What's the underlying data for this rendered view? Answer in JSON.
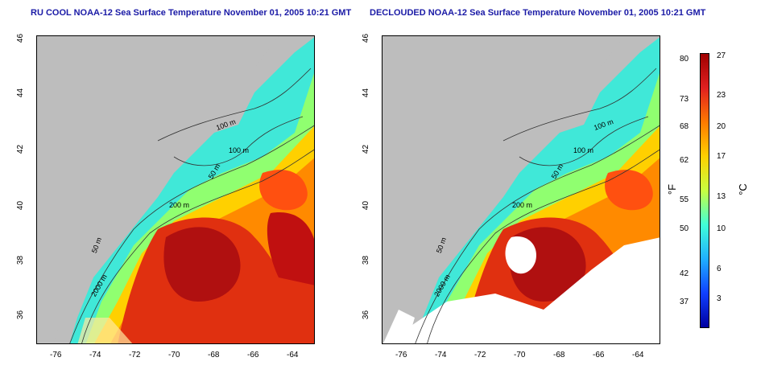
{
  "panels": [
    {
      "title": "RU COOL NOAA-12 Sea Surface Temperature November 01, 2005 10:21 GMT",
      "variant": "raw"
    },
    {
      "title": "DECLOUDED NOAA-12 Sea Surface Temperature November 01, 2005 10:21 GMT",
      "variant": "declouded"
    }
  ],
  "axes": {
    "lon_ticks": [
      "-76",
      "-74",
      "-72",
      "-70",
      "-68",
      "-66",
      "-64"
    ],
    "lat_ticks": [
      "46",
      "44",
      "42",
      "40",
      "38",
      "36"
    ]
  },
  "contours": {
    "labels": [
      "100 m",
      "100 m",
      "50 m",
      "200 m",
      "50 m",
      "2000 m"
    ]
  },
  "colorbar": {
    "fahrenheit": [
      "80",
      "73",
      "68",
      "62",
      "55",
      "50",
      "42",
      "37"
    ],
    "celsius": [
      "27",
      "23",
      "20",
      "17",
      "13",
      "10",
      "6",
      "3"
    ],
    "unit_f": "°F",
    "unit_c": "°C",
    "colors": [
      "#a00000",
      "#e02020",
      "#ff7a00",
      "#ffd000",
      "#c8ff40",
      "#40ffd8",
      "#20b0ff",
      "#1040ff",
      "#0000a0"
    ]
  },
  "colors": {
    "land": "#bdbdbd",
    "title": "#1a1aa6"
  }
}
